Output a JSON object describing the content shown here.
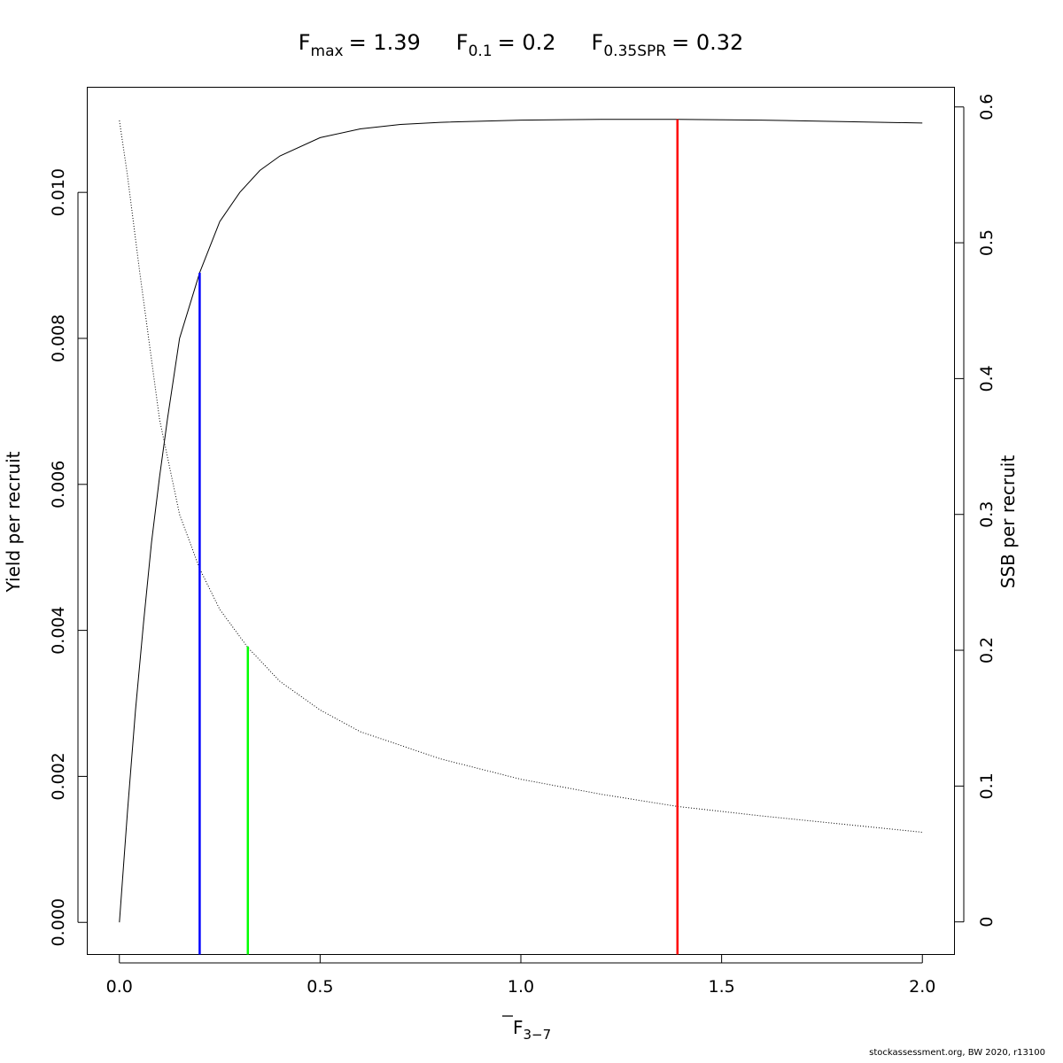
{
  "title": {
    "fmax_sub": "max",
    "fmax_value": "= 1.39",
    "f01_sub": "0.1",
    "f01_value": "= 0.2",
    "fspr_sub": "0.35SPR",
    "fspr_value": "= 0.32"
  },
  "footer": "stockassessment.org, BW  2020, r13100",
  "chart_data": {
    "type": "line",
    "xlabel_main": "F",
    "xlabel_sub": "3−7",
    "ylabel": "Yield per recruit",
    "y2label": "SSB per recruit",
    "xlim": [
      -0.08,
      2.08
    ],
    "ylim": [
      -0.00044,
      0.01144
    ],
    "y2lim": [
      -0.024,
      0.6145
    ],
    "x_ticks": [
      0,
      0.5,
      1,
      1.5,
      2
    ],
    "x_tick_labels": [
      "0.0",
      "0.5",
      "1.0",
      "1.5",
      "2.0"
    ],
    "y_ticks": [
      0,
      0.002,
      0.004,
      0.006,
      0.008,
      0.01
    ],
    "y_tick_labels": [
      "0.000",
      "0.002",
      "0.004",
      "0.006",
      "0.008",
      "0.010"
    ],
    "y2_ticks": [
      0,
      0.1,
      0.2,
      0.3,
      0.4,
      0.5,
      0.6
    ],
    "y2_tick_labels": [
      "0",
      "0.1",
      "0.2",
      "0.3",
      "0.4",
      "0.5",
      "0.6"
    ],
    "series": [
      {
        "style": "solid",
        "axis": "left",
        "color": "#000000",
        "x": [
          0,
          0.02,
          0.04,
          0.06,
          0.08,
          0.1,
          0.12,
          0.15,
          0.2,
          0.25,
          0.3,
          0.35,
          0.4,
          0.5,
          0.6,
          0.7,
          0.8,
          1.0,
          1.2,
          1.39,
          1.6,
          1.8,
          2.0
        ],
        "y": [
          0,
          0.0015,
          0.0029,
          0.0041,
          0.0052,
          0.0061,
          0.0069,
          0.008,
          0.0089,
          0.0096,
          0.01,
          0.0103,
          0.0105,
          0.01075,
          0.01087,
          0.01093,
          0.01096,
          0.01099,
          0.011,
          0.011,
          0.01099,
          0.01097,
          0.01095
        ]
      },
      {
        "style": "dotted",
        "axis": "right",
        "color": "#000000",
        "x": [
          0,
          0.02,
          0.05,
          0.1,
          0.15,
          0.2,
          0.25,
          0.32,
          0.4,
          0.5,
          0.6,
          0.8,
          1.0,
          1.2,
          1.39,
          1.6,
          1.8,
          2.0
        ],
        "y": [
          0.59,
          0.55,
          0.48,
          0.37,
          0.3,
          0.26,
          0.23,
          0.202,
          0.177,
          0.156,
          0.14,
          0.12,
          0.105,
          0.094,
          0.085,
          0.078,
          0.072,
          0.066
        ]
      }
    ],
    "reference_lines": [
      {
        "name": "F0.1",
        "x": 0.2,
        "y_top": 0.0089,
        "color": "#0000ff"
      },
      {
        "name": "F0.35SPR",
        "x": 0.32,
        "y_top": 0.00378,
        "color": "#00ff00"
      },
      {
        "name": "Fmax",
        "x": 1.39,
        "y_top": 0.011,
        "color": "#ff0000"
      }
    ]
  }
}
